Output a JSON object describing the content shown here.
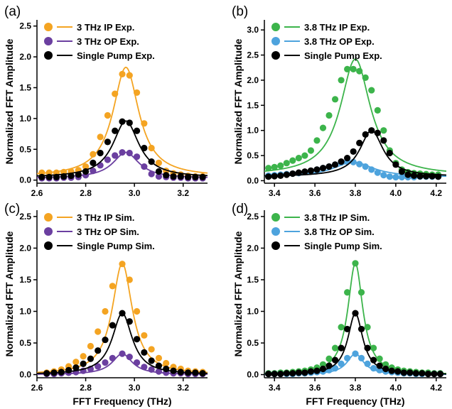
{
  "chart_data": [
    {
      "type": "scatter",
      "panel_label": "(a)",
      "ylabel": "Normalized FFT Amplitude",
      "xlabel": "",
      "xlim": [
        2.6,
        3.3
      ],
      "ylim": [
        -0.05,
        2.6
      ],
      "xticks": [
        "2.6",
        "2.8",
        "3.0",
        "3.2"
      ],
      "xtick_values": [
        2.6,
        2.8,
        3.0,
        3.2
      ],
      "yticks": [
        "0.0",
        "0.5",
        "1.0",
        "1.5",
        "2.0",
        "2.5"
      ],
      "ytick_values": [
        0.0,
        0.5,
        1.0,
        1.5,
        2.0,
        2.5
      ],
      "legend_position": "top-left",
      "series": [
        {
          "name": "3 THz IP Exp.",
          "color": "#f4a422",
          "x": [
            2.62,
            2.65,
            2.68,
            2.71,
            2.74,
            2.77,
            2.8,
            2.83,
            2.86,
            2.89,
            2.92,
            2.95,
            2.98,
            3.01,
            3.04,
            3.07,
            3.1,
            3.13,
            3.16,
            3.19,
            3.22,
            3.25,
            3.28
          ],
          "y": [
            0.12,
            0.12,
            0.12,
            0.13,
            0.14,
            0.16,
            0.22,
            0.42,
            0.7,
            1.05,
            1.4,
            1.72,
            1.7,
            1.42,
            0.92,
            0.52,
            0.28,
            0.15,
            0.11,
            0.09,
            0.07,
            0.06,
            0.06
          ],
          "fit": {
            "center": 2.965,
            "width": 0.065,
            "amp": 1.78,
            "base": 0.05
          }
        },
        {
          "name": "3 THz OP Exp.",
          "color": "#6b3fa0",
          "x": [
            2.62,
            2.65,
            2.68,
            2.71,
            2.74,
            2.77,
            2.8,
            2.83,
            2.86,
            2.89,
            2.92,
            2.95,
            2.98,
            3.01,
            3.04,
            3.07,
            3.1,
            3.13,
            3.16,
            3.19,
            3.22,
            3.25,
            3.28
          ],
          "y": [
            0.03,
            0.03,
            0.03,
            0.04,
            0.04,
            0.05,
            0.08,
            0.15,
            0.24,
            0.33,
            0.4,
            0.45,
            0.44,
            0.38,
            0.22,
            0.1,
            0.06,
            0.05,
            0.04,
            0.04,
            0.03,
            0.03,
            0.03
          ],
          "fit": {
            "center": 2.965,
            "width": 0.065,
            "amp": 0.42,
            "base": 0.03
          }
        },
        {
          "name": "Single Pump Exp.",
          "color": "#000000",
          "x": [
            2.62,
            2.65,
            2.68,
            2.71,
            2.74,
            2.77,
            2.8,
            2.83,
            2.86,
            2.89,
            2.92,
            2.95,
            2.98,
            3.01,
            3.04,
            3.07,
            3.1,
            3.13,
            3.16,
            3.19,
            3.22,
            3.25,
            3.28
          ],
          "y": [
            0.05,
            0.05,
            0.05,
            0.06,
            0.07,
            0.09,
            0.14,
            0.28,
            0.44,
            0.62,
            0.8,
            0.95,
            0.93,
            0.8,
            0.52,
            0.3,
            0.14,
            0.08,
            0.06,
            0.06,
            0.05,
            0.05,
            0.05
          ],
          "fit": {
            "center": 2.965,
            "width": 0.065,
            "amp": 0.92,
            "base": 0.04
          }
        }
      ]
    },
    {
      "type": "scatter",
      "panel_label": "(b)",
      "ylabel": "Normalized FFT Amplitude",
      "xlabel": "",
      "xlim": [
        3.35,
        4.25
      ],
      "ylim": [
        -0.05,
        3.2
      ],
      "xticks": [
        "3.4",
        "3.6",
        "3.8",
        "4.0",
        "4.2"
      ],
      "xtick_values": [
        3.4,
        3.6,
        3.8,
        4.0,
        4.2
      ],
      "yticks": [
        "0.0",
        "0.5",
        "1.0",
        "1.5",
        "2.0",
        "2.5",
        "3.0"
      ],
      "ytick_values": [
        0.0,
        0.5,
        1.0,
        1.5,
        2.0,
        2.5,
        3.0
      ],
      "legend_position": "top-left",
      "series": [
        {
          "name": "3.8 THz IP Exp.",
          "color": "#3cb44b",
          "x": [
            3.37,
            3.4,
            3.43,
            3.46,
            3.49,
            3.52,
            3.55,
            3.58,
            3.61,
            3.64,
            3.67,
            3.7,
            3.73,
            3.76,
            3.79,
            3.82,
            3.85,
            3.88,
            3.91,
            3.94,
            3.97,
            4.0,
            4.03,
            4.06,
            4.09,
            4.12,
            4.15,
            4.18,
            4.21
          ],
          "y": [
            0.25,
            0.27,
            0.3,
            0.35,
            0.4,
            0.45,
            0.5,
            0.6,
            0.8,
            1.05,
            1.3,
            1.62,
            2.0,
            2.22,
            2.22,
            2.18,
            2.05,
            1.8,
            1.4,
            1.0,
            0.6,
            0.35,
            0.22,
            0.17,
            0.15,
            0.14,
            0.13,
            0.12,
            0.12
          ],
          "fit": {
            "center": 3.8,
            "width": 0.09,
            "amp": 2.32,
            "base": 0.1
          }
        },
        {
          "name": "3.8 THz OP Exp.",
          "color": "#4da3dd",
          "x": [
            3.37,
            3.4,
            3.43,
            3.46,
            3.49,
            3.52,
            3.55,
            3.58,
            3.61,
            3.64,
            3.67,
            3.7,
            3.73,
            3.76,
            3.79,
            3.82,
            3.85,
            3.88,
            3.91,
            3.94,
            3.97,
            4.0,
            4.03,
            4.06,
            4.09,
            4.12,
            4.15,
            4.18,
            4.21
          ],
          "y": [
            0.1,
            0.11,
            0.12,
            0.13,
            0.14,
            0.15,
            0.17,
            0.19,
            0.22,
            0.25,
            0.28,
            0.32,
            0.36,
            0.38,
            0.37,
            0.33,
            0.28,
            0.22,
            0.16,
            0.11,
            0.08,
            0.07,
            0.07,
            0.07,
            0.07,
            0.08,
            0.08,
            0.08,
            0.08
          ],
          "fit": {
            "center": 3.79,
            "width": 0.12,
            "amp": 0.3,
            "base": 0.07
          }
        },
        {
          "name": "Single Pump Exp.",
          "color": "#000000",
          "x": [
            3.37,
            3.4,
            3.43,
            3.46,
            3.49,
            3.52,
            3.55,
            3.58,
            3.61,
            3.64,
            3.67,
            3.7,
            3.73,
            3.76,
            3.79,
            3.82,
            3.85,
            3.88,
            3.91,
            3.94,
            3.97,
            4.0,
            4.03,
            4.06,
            4.09,
            4.12,
            4.15,
            4.18,
            4.21
          ],
          "y": [
            0.08,
            0.09,
            0.1,
            0.12,
            0.14,
            0.16,
            0.18,
            0.2,
            0.22,
            0.25,
            0.28,
            0.32,
            0.38,
            0.45,
            0.58,
            0.75,
            0.92,
            1.0,
            0.95,
            0.8,
            0.55,
            0.32,
            0.18,
            0.12,
            0.1,
            0.09,
            0.09,
            0.09,
            0.08
          ],
          "fit": {
            "center": 3.88,
            "width": 0.07,
            "amp": 0.92,
            "base": 0.08
          }
        }
      ]
    },
    {
      "type": "scatter",
      "panel_label": "(c)",
      "ylabel": "Normalized FFT Amplitude",
      "xlabel": "FFT Frequency (THz)",
      "xlim": [
        2.6,
        3.3
      ],
      "ylim": [
        -0.05,
        2.6
      ],
      "xticks": [
        "2.6",
        "2.8",
        "3.0",
        "3.2"
      ],
      "xtick_values": [
        2.6,
        2.8,
        3.0,
        3.2
      ],
      "yticks": [
        "0.0",
        "0.5",
        "1.0",
        "1.5",
        "2.0",
        "2.5"
      ],
      "ytick_values": [
        0.0,
        0.5,
        1.0,
        1.5,
        2.0,
        2.5
      ],
      "legend_position": "top-left",
      "series": [
        {
          "name": "3 THz IP Sim.",
          "color": "#f4a422",
          "x": [
            2.64,
            2.67,
            2.7,
            2.73,
            2.76,
            2.79,
            2.82,
            2.85,
            2.88,
            2.91,
            2.95,
            2.98,
            3.01,
            3.04,
            3.07,
            3.1,
            3.13,
            3.16,
            3.19,
            3.22,
            3.25,
            3.28
          ],
          "y": [
            0.03,
            0.05,
            0.08,
            0.13,
            0.2,
            0.29,
            0.45,
            0.68,
            1.0,
            1.4,
            1.75,
            1.5,
            1.0,
            0.62,
            0.4,
            0.26,
            0.18,
            0.12,
            0.09,
            0.06,
            0.05,
            0.04
          ],
          "fit": {
            "center": 2.95,
            "width": 0.05,
            "amp": 1.76,
            "base": 0.0
          }
        },
        {
          "name": "3 THz OP Sim.",
          "color": "#6b3fa0",
          "x": [
            2.64,
            2.67,
            2.7,
            2.73,
            2.76,
            2.79,
            2.82,
            2.85,
            2.88,
            2.91,
            2.95,
            2.98,
            3.01,
            3.04,
            3.07,
            3.1,
            3.13,
            3.16,
            3.19,
            3.22,
            3.25,
            3.28
          ],
          "y": [
            0.01,
            0.01,
            0.02,
            0.03,
            0.04,
            0.06,
            0.09,
            0.13,
            0.19,
            0.26,
            0.33,
            0.28,
            0.19,
            0.12,
            0.08,
            0.05,
            0.03,
            0.02,
            0.02,
            0.01,
            0.01,
            0.01
          ],
          "fit": {
            "center": 2.95,
            "width": 0.05,
            "amp": 0.33,
            "base": 0.0
          }
        },
        {
          "name": "Single Pump Sim.",
          "color": "#000000",
          "x": [
            2.64,
            2.67,
            2.7,
            2.73,
            2.76,
            2.79,
            2.82,
            2.85,
            2.88,
            2.91,
            2.95,
            2.98,
            3.01,
            3.04,
            3.07,
            3.1,
            3.13,
            3.16,
            3.19,
            3.22,
            3.25,
            3.28
          ],
          "y": [
            0.02,
            0.03,
            0.04,
            0.07,
            0.11,
            0.17,
            0.25,
            0.38,
            0.55,
            0.78,
            0.97,
            0.84,
            0.56,
            0.35,
            0.22,
            0.14,
            0.09,
            0.06,
            0.04,
            0.03,
            0.03,
            0.02
          ],
          "fit": {
            "center": 2.95,
            "width": 0.05,
            "amp": 0.97,
            "base": 0.0
          }
        }
      ]
    },
    {
      "type": "scatter",
      "panel_label": "(d)",
      "ylabel": "Normalized FFT Amplitude",
      "xlabel": "FFT Frequency (THz)",
      "xlim": [
        3.35,
        4.25
      ],
      "ylim": [
        -0.05,
        2.6
      ],
      "xticks": [
        "3.4",
        "3.6",
        "3.8",
        "4.0",
        "4.2"
      ],
      "xtick_values": [
        3.4,
        3.6,
        3.8,
        4.0,
        4.2
      ],
      "yticks": [
        "0.0",
        "0.5",
        "1.0",
        "1.5",
        "2.0",
        "2.5"
      ],
      "ytick_values": [
        0.0,
        0.5,
        1.0,
        1.5,
        2.0,
        2.5
      ],
      "legend_position": "top-left",
      "series": [
        {
          "name": "3.8 THz IP Sim.",
          "color": "#3cb44b",
          "x": [
            3.37,
            3.4,
            3.43,
            3.46,
            3.49,
            3.52,
            3.55,
            3.58,
            3.61,
            3.64,
            3.67,
            3.7,
            3.73,
            3.76,
            3.8,
            3.83,
            3.86,
            3.89,
            3.92,
            3.95,
            3.98,
            4.01,
            4.04,
            4.07,
            4.1,
            4.13,
            4.16,
            4.19,
            4.22
          ],
          "y": [
            0.02,
            0.02,
            0.03,
            0.03,
            0.04,
            0.05,
            0.06,
            0.08,
            0.11,
            0.16,
            0.25,
            0.42,
            0.75,
            1.3,
            1.76,
            1.3,
            0.75,
            0.42,
            0.25,
            0.16,
            0.11,
            0.08,
            0.06,
            0.05,
            0.04,
            0.03,
            0.03,
            0.02,
            0.02
          ],
          "fit": {
            "center": 3.8,
            "width": 0.045,
            "amp": 1.76,
            "base": 0.0
          }
        },
        {
          "name": "3.8 THz OP Sim.",
          "color": "#4da3dd",
          "x": [
            3.37,
            3.4,
            3.43,
            3.46,
            3.49,
            3.52,
            3.55,
            3.58,
            3.61,
            3.64,
            3.67,
            3.7,
            3.73,
            3.76,
            3.8,
            3.83,
            3.86,
            3.89,
            3.92,
            3.95,
            3.98,
            4.01,
            4.04,
            4.07,
            4.1,
            4.13,
            4.16,
            4.19,
            4.22
          ],
          "y": [
            0.01,
            0.01,
            0.01,
            0.01,
            0.01,
            0.02,
            0.02,
            0.03,
            0.04,
            0.05,
            0.07,
            0.1,
            0.17,
            0.26,
            0.33,
            0.26,
            0.17,
            0.1,
            0.07,
            0.05,
            0.04,
            0.03,
            0.02,
            0.02,
            0.01,
            0.01,
            0.01,
            0.01,
            0.01
          ],
          "fit": {
            "center": 3.8,
            "width": 0.05,
            "amp": 0.33,
            "base": 0.0
          }
        },
        {
          "name": "Single Pump Sim.",
          "color": "#000000",
          "x": [
            3.37,
            3.4,
            3.43,
            3.46,
            3.49,
            3.52,
            3.55,
            3.58,
            3.61,
            3.64,
            3.67,
            3.7,
            3.73,
            3.76,
            3.8,
            3.83,
            3.86,
            3.89,
            3.92,
            3.95,
            3.98,
            4.01,
            4.04,
            4.07,
            4.1,
            4.13,
            4.16,
            4.19,
            4.22
          ],
          "y": [
            0.01,
            0.01,
            0.01,
            0.02,
            0.02,
            0.03,
            0.03,
            0.05,
            0.06,
            0.09,
            0.14,
            0.23,
            0.42,
            0.72,
            0.97,
            0.72,
            0.42,
            0.23,
            0.14,
            0.09,
            0.06,
            0.05,
            0.03,
            0.03,
            0.02,
            0.02,
            0.01,
            0.01,
            0.01
          ],
          "fit": {
            "center": 3.8,
            "width": 0.045,
            "amp": 0.97,
            "base": 0.0
          }
        }
      ]
    }
  ]
}
